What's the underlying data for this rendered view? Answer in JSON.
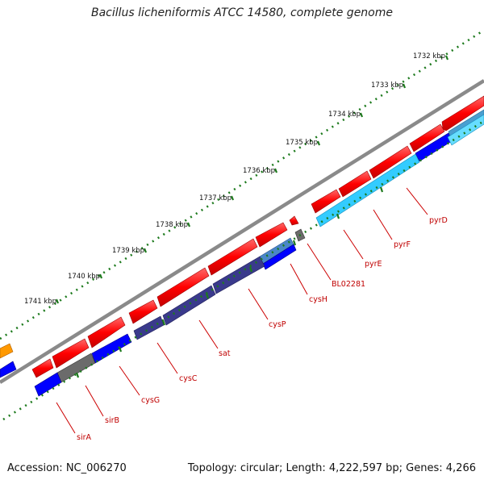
{
  "title": "Bacillus licheniformis ATCC 14580, complete genome",
  "footer": {
    "accession": "Accession: NC_006270",
    "summary": "Topology: circular; Length: 4,222,597 bp; Genes: 4,266"
  },
  "kbp_labels": [
    "1732 kbp",
    "1733 kbp",
    "1734 kbp",
    "1735 kbp",
    "1736 kbp",
    "1737 kbp",
    "1738 kbp",
    "1739 kbp",
    "1740 kbp",
    "1741 kbp"
  ],
  "gene_labels": [
    "pyrD",
    "pyrF",
    "pyrE",
    "BL02281",
    "cysH",
    "cysP",
    "sat",
    "cysC",
    "cysG",
    "sirB",
    "sirA"
  ],
  "colors": {
    "backbone": "#8a8a8a",
    "forward_cds": "#ff0000",
    "reverse_cds": "#0000ff",
    "dark_cds": "#3a3a8c",
    "light_cds": "#33ccff",
    "gray_cds": "#6b6b6b",
    "orange_cds": "#ff9900",
    "ticks_green": "#1d7a1d",
    "label_red": "#cc0000"
  }
}
